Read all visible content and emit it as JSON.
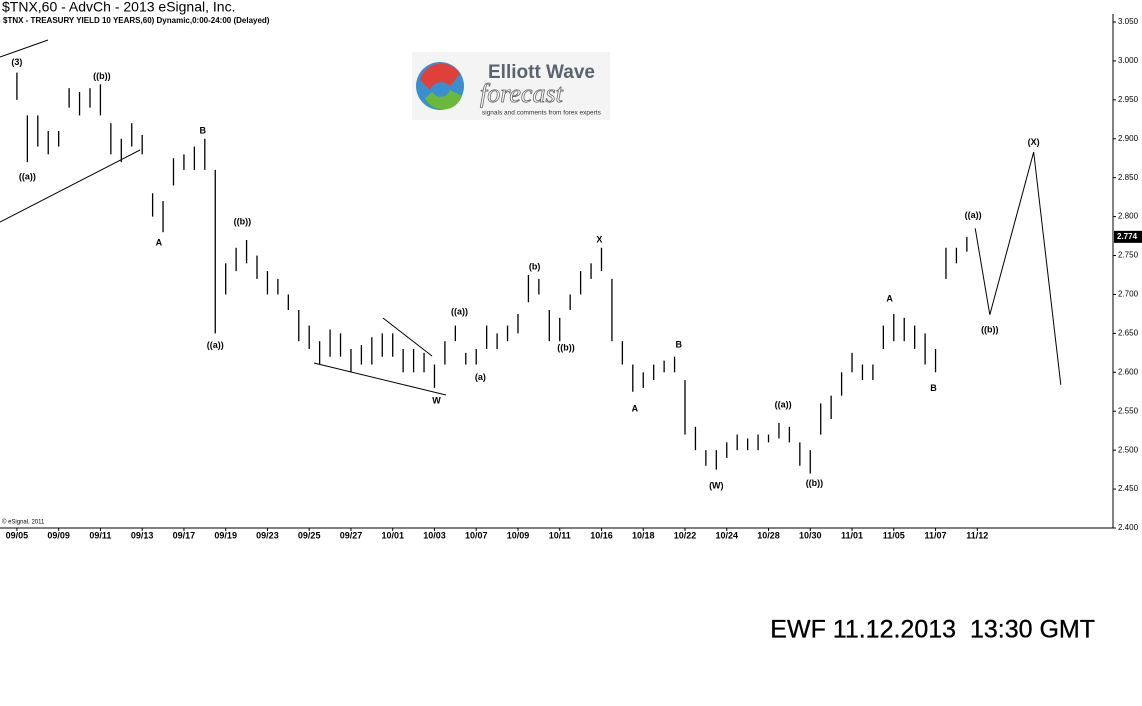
{
  "chart_data": {
    "type": "ohlc",
    "title": "$TNX,60 - AdvCh - 2013 eSignal, Inc.",
    "subtitle": "$TNX - TREASURY YIELD 10 YEARS,60) Dynamic,0:00-24:00 (Delayed)",
    "copyright": "© eSignal, 2011",
    "color": "#000000",
    "xlim": [
      -0.81,
      52.5
    ],
    "ylim": [
      2.4,
      3.05
    ],
    "xticks": [
      {
        "value": 0,
        "label": "09/05"
      },
      {
        "value": 2,
        "label": "09/09"
      },
      {
        "value": 4,
        "label": "09/11"
      },
      {
        "value": 6,
        "label": "09/13"
      },
      {
        "value": 8,
        "label": "09/17"
      },
      {
        "value": 10,
        "label": "09/19"
      },
      {
        "value": 12,
        "label": "09/23"
      },
      {
        "value": 14,
        "label": "09/25"
      },
      {
        "value": 16,
        "label": "09/27"
      },
      {
        "value": 18,
        "label": "10/01"
      },
      {
        "value": 20,
        "label": "10/03"
      },
      {
        "value": 22,
        "label": "10/07"
      },
      {
        "value": 24,
        "label": "10/09"
      },
      {
        "value": 26,
        "label": "10/11"
      },
      {
        "value": 28,
        "label": "10/16"
      },
      {
        "value": 30,
        "label": "10/18"
      },
      {
        "value": 32,
        "label": "10/22"
      },
      {
        "value": 34,
        "label": "10/24"
      },
      {
        "value": 36,
        "label": "10/28"
      },
      {
        "value": 38,
        "label": "10/30"
      },
      {
        "value": 40,
        "label": "11/01"
      },
      {
        "value": 42,
        "label": "11/05"
      },
      {
        "value": 44,
        "label": "11/07"
      },
      {
        "value": 46,
        "label": "11/12"
      }
    ],
    "yticks": [
      {
        "value": 2.4,
        "label": "2.400"
      },
      {
        "value": 2.45,
        "label": "2.450"
      },
      {
        "value": 2.5,
        "label": "2.500"
      },
      {
        "value": 2.55,
        "label": "2.550"
      },
      {
        "value": 2.6,
        "label": "2.600"
      },
      {
        "value": 2.65,
        "label": "2.650"
      },
      {
        "value": 2.7,
        "label": "2.700"
      },
      {
        "value": 2.75,
        "label": "2.750"
      },
      {
        "value": 2.8,
        "label": "2.800"
      },
      {
        "value": 2.85,
        "label": "2.850"
      },
      {
        "value": 2.9,
        "label": "2.900"
      },
      {
        "value": 2.95,
        "label": "2.950"
      },
      {
        "value": 3.0,
        "label": "3.000"
      },
      {
        "value": 3.05,
        "label": "3.050"
      }
    ],
    "last_price": {
      "value": 2.774,
      "label": "2.774"
    },
    "x": [
      0,
      0.5,
      1,
      1.5,
      2,
      2.5,
      3,
      3.5,
      4,
      4.5,
      5,
      5.5,
      6,
      6.5,
      7,
      7.5,
      8,
      8.5,
      9,
      9.5,
      10,
      10.5,
      11,
      11.5,
      12,
      12.5,
      13,
      13.5,
      14,
      14.5,
      15,
      15.5,
      16,
      16.5,
      17,
      17.5,
      18,
      18.5,
      19,
      19.5,
      20,
      20.5,
      21,
      21.5,
      22,
      22.5,
      23,
      23.5,
      24,
      24.5,
      25,
      25.5,
      26,
      26.5,
      27,
      27.5,
      28,
      28.5,
      29,
      29.5,
      30,
      30.5,
      31,
      31.5,
      32,
      32.5,
      33,
      33.5,
      34,
      34.5,
      35,
      35.5,
      36,
      36.5,
      37,
      37.5,
      38,
      38.5,
      39,
      39.5,
      40,
      40.5,
      41,
      41.5,
      42,
      42.5,
      43,
      43.5,
      44,
      44.5,
      45,
      45.5
    ],
    "high": [
      2.985,
      2.93,
      2.93,
      2.91,
      2.91,
      2.965,
      2.96,
      2.965,
      2.97,
      2.92,
      2.9,
      2.92,
      2.905,
      2.83,
      2.82,
      2.875,
      2.88,
      2.89,
      2.9,
      2.86,
      2.74,
      2.76,
      2.77,
      2.75,
      2.73,
      2.72,
      2.7,
      2.68,
      2.66,
      2.64,
      2.655,
      2.65,
      2.63,
      2.635,
      2.645,
      2.65,
      2.65,
      2.63,
      2.63,
      2.625,
      2.61,
      2.64,
      2.66,
      2.625,
      2.63,
      2.66,
      2.65,
      2.66,
      2.675,
      2.725,
      2.72,
      2.68,
      2.67,
      2.7,
      2.73,
      2.74,
      2.76,
      2.72,
      2.64,
      2.61,
      2.6,
      2.61,
      2.615,
      2.62,
      2.59,
      2.53,
      2.5,
      2.5,
      2.51,
      2.52,
      2.515,
      2.52,
      2.52,
      2.535,
      2.53,
      2.51,
      2.5,
      2.56,
      2.57,
      2.6,
      2.625,
      2.61,
      2.61,
      2.66,
      2.675,
      2.67,
      2.66,
      2.65,
      2.63,
      2.76,
      2.76,
      2.774
    ],
    "low": [
      2.95,
      2.87,
      2.89,
      2.88,
      2.89,
      2.94,
      2.93,
      2.94,
      2.93,
      2.88,
      2.87,
      2.89,
      2.88,
      2.8,
      2.78,
      2.84,
      2.86,
      2.86,
      2.86,
      2.65,
      2.7,
      2.73,
      2.74,
      2.72,
      2.7,
      2.7,
      2.68,
      2.64,
      2.63,
      2.61,
      2.62,
      2.62,
      2.6,
      2.61,
      2.61,
      2.62,
      2.62,
      2.6,
      2.6,
      2.6,
      2.58,
      2.61,
      2.64,
      2.61,
      2.61,
      2.63,
      2.63,
      2.64,
      2.65,
      2.69,
      2.7,
      2.64,
      2.64,
      2.68,
      2.7,
      2.72,
      2.73,
      2.64,
      2.61,
      2.575,
      2.58,
      2.59,
      2.6,
      2.6,
      2.52,
      2.5,
      2.48,
      2.475,
      2.49,
      2.5,
      2.5,
      2.5,
      2.51,
      2.515,
      2.51,
      2.48,
      2.47,
      2.52,
      2.54,
      2.57,
      2.6,
      2.59,
      2.59,
      2.63,
      2.64,
      2.64,
      2.63,
      2.61,
      2.6,
      2.72,
      2.74,
      2.755
    ],
    "projection": {
      "x": [
        45.9,
        46.6,
        48.7,
        50.0
      ],
      "values": [
        2.785,
        2.674,
        2.883,
        2.584
      ]
    },
    "annotations": [
      {
        "text": "(3)",
        "x": 0,
        "y": 2.998
      },
      {
        "text": "((a))",
        "x": 0.5,
        "y": 2.851
      },
      {
        "text": "((b))",
        "x": 4.07,
        "y": 2.98
      },
      {
        "text": "A",
        "x": 6.8,
        "y": 2.766
      },
      {
        "text": "B",
        "x": 8.9,
        "y": 2.91
      },
      {
        "text": "((a))",
        "x": 9.5,
        "y": 2.634
      },
      {
        "text": "((b))",
        "x": 10.8,
        "y": 2.793
      },
      {
        "text": "W",
        "x": 20.1,
        "y": 2.563
      },
      {
        "text": "((a))",
        "x": 21.2,
        "y": 2.677
      },
      {
        "text": "(a)",
        "x": 22.2,
        "y": 2.593
      },
      {
        "text": "(b)",
        "x": 24.8,
        "y": 2.735
      },
      {
        "text": "((b))",
        "x": 26.3,
        "y": 2.631
      },
      {
        "text": "X",
        "x": 27.9,
        "y": 2.77
      },
      {
        "text": "A",
        "x": 29.6,
        "y": 2.553
      },
      {
        "text": "B",
        "x": 31.7,
        "y": 2.635
      },
      {
        "text": "(W)",
        "x": 33.5,
        "y": 2.454
      },
      {
        "text": "((a))",
        "x": 36.7,
        "y": 2.558
      },
      {
        "text": "((b))",
        "x": 38.2,
        "y": 2.457
      },
      {
        "text": "A",
        "x": 41.8,
        "y": 2.694
      },
      {
        "text": "B",
        "x": 43.9,
        "y": 2.579
      },
      {
        "text": "((a))",
        "x": 45.8,
        "y": 2.801
      },
      {
        "text": "((b))",
        "x": 46.6,
        "y": 2.654
      },
      {
        "text": "(X)",
        "x": 48.7,
        "y": 2.895
      }
    ]
  },
  "logo": {
    "title": "Elliott Wave",
    "subtitle": "forecast",
    "tagline": "signals and comments from forex experts"
  },
  "footer": "EWF 11.12.2013  13:30 GMT"
}
